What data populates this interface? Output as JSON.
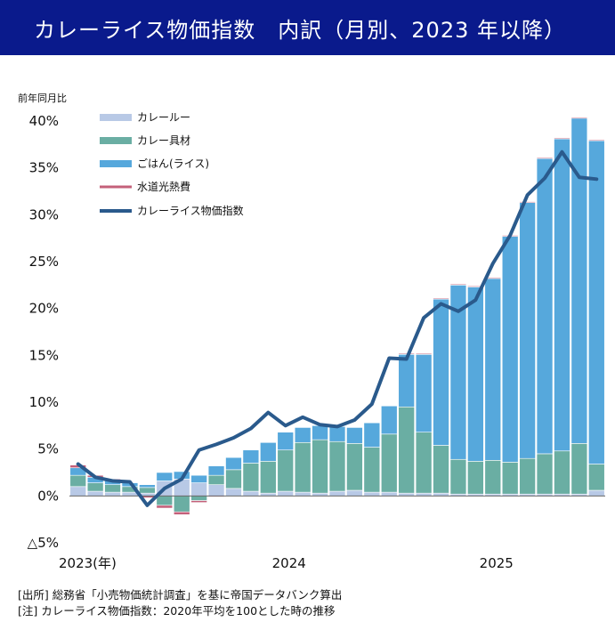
{
  "title": "カレーライス物価指数　内訳（月別、2023 年以降）",
  "notes": {
    "source": "[出所]  総務省「小売物価統計調査」を基に帝国データバンク算出",
    "note": "[注]  カレーライス物価指数：2020年平均を100とした時の推移"
  },
  "chart_data": {
    "type": "bar",
    "stacked": true,
    "ylabel": "前年同月比",
    "ylim": [
      -5,
      40
    ],
    "y_ticks": [
      {
        "value": 40,
        "label": "40%"
      },
      {
        "value": 35,
        "label": "35%"
      },
      {
        "value": 30,
        "label": "30%"
      },
      {
        "value": 25,
        "label": "25%"
      },
      {
        "value": 20,
        "label": "20%"
      },
      {
        "value": 15,
        "label": "15%"
      },
      {
        "value": 10,
        "label": "10%"
      },
      {
        "value": 5,
        "label": "5%"
      },
      {
        "value": 0,
        "label": "0%"
      },
      {
        "value": -5,
        "label": "△5%"
      }
    ],
    "x_tick_labels": [
      {
        "index": 0,
        "label": "2023(年)"
      },
      {
        "index": 12,
        "label": "2024"
      },
      {
        "index": 24,
        "label": "2025"
      }
    ],
    "categories": [
      "2023-01",
      "2023-02",
      "2023-03",
      "2023-04",
      "2023-05",
      "2023-06",
      "2023-07",
      "2023-08",
      "2023-09",
      "2023-10",
      "2023-11",
      "2023-12",
      "2024-01",
      "2024-02",
      "2024-03",
      "2024-04",
      "2024-05",
      "2024-06",
      "2024-07",
      "2024-08",
      "2024-09",
      "2024-10",
      "2024-11",
      "2024-12",
      "2025-01",
      "2025-02",
      "2025-03",
      "2025-04",
      "2025-05",
      "2025-06",
      "2025-07"
    ],
    "series": [
      {
        "name": "カレールー",
        "color": "#b8c9e6",
        "values": [
          1.0,
          0.5,
          0.4,
          0.4,
          0.3,
          1.6,
          1.8,
          1.4,
          1.2,
          0.8,
          0.5,
          0.3,
          0.5,
          0.4,
          0.3,
          0.5,
          0.6,
          0.4,
          0.4,
          0.3,
          0.3,
          0.3,
          0.2,
          0.2,
          0.2,
          0.2,
          0.2,
          0.2,
          0.2,
          0.2,
          0.6
        ]
      },
      {
        "name": "カレー具材",
        "color": "#6aaea3",
        "values": [
          1.2,
          0.9,
          0.8,
          0.6,
          0.6,
          -1.0,
          -1.7,
          -0.5,
          1.0,
          2.0,
          3.0,
          3.4,
          4.4,
          5.3,
          5.7,
          5.3,
          5.0,
          4.8,
          6.2,
          9.2,
          6.5,
          5.1,
          3.7,
          3.5,
          3.6,
          3.4,
          3.8,
          4.3,
          4.6,
          5.4,
          2.8
        ]
      },
      {
        "name": "ごはん(ライス)",
        "color": "#56a8dc",
        "values": [
          0.8,
          0.6,
          0.5,
          0.4,
          0.3,
          0.9,
          0.8,
          0.8,
          1.0,
          1.3,
          1.4,
          2.0,
          1.9,
          1.6,
          1.5,
          1.6,
          1.7,
          2.6,
          3.0,
          5.6,
          8.3,
          15.6,
          18.6,
          18.6,
          19.4,
          24.1,
          27.3,
          31.5,
          33.3,
          34.7,
          34.5
        ]
      },
      {
        "name": "水道光熱費",
        "color": "#c4607a",
        "values": [
          0.3,
          0.2,
          0.1,
          0.0,
          -0.2,
          -0.3,
          -0.3,
          -0.2,
          -0.1,
          0.0,
          0.0,
          0.0,
          0.0,
          0.0,
          0.0,
          0.0,
          0.0,
          0.0,
          0.0,
          0.1,
          0.1,
          0.1,
          0.1,
          0.1,
          0.1,
          0.1,
          0.1,
          0.1,
          0.1,
          0.1,
          0.1
        ]
      },
      {
        "name": "カレーライス物価指数",
        "color": "#2a5a8c",
        "kind": "line",
        "values": [
          3.4,
          2.0,
          1.6,
          1.5,
          -1.0,
          0.8,
          1.8,
          4.9,
          5.5,
          6.2,
          7.2,
          8.9,
          7.5,
          8.4,
          7.6,
          7.4,
          8.1,
          9.8,
          14.7,
          14.6,
          19.0,
          20.5,
          19.7,
          20.9,
          24.8,
          27.8,
          32.1,
          33.9,
          36.7,
          34.0,
          33.8
        ]
      }
    ],
    "grid": false,
    "legend_position": "top-left"
  }
}
